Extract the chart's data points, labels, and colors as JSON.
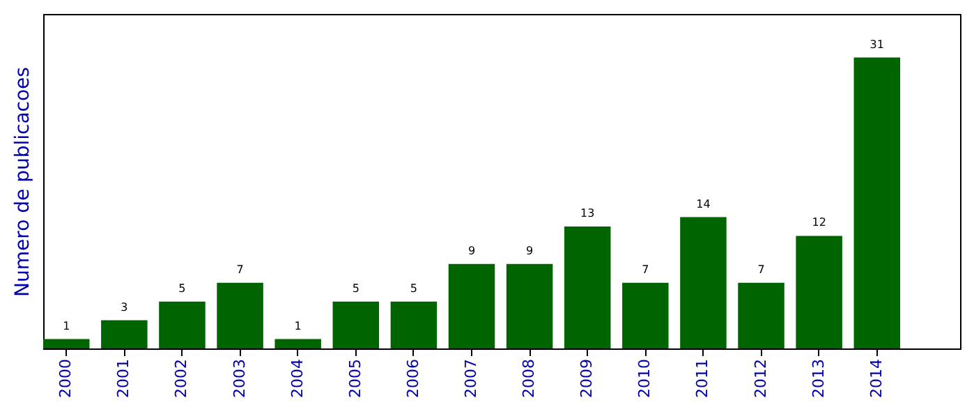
{
  "chart_data": {
    "type": "bar",
    "ylabel": "Numero de publicacoes",
    "categories": [
      "2000",
      "2001",
      "2002",
      "2003",
      "2004",
      "2005",
      "2006",
      "2007",
      "2008",
      "2009",
      "2010",
      "2011",
      "2012",
      "2013",
      "2014"
    ],
    "values": [
      1,
      3,
      5,
      7,
      1,
      5,
      5,
      9,
      9,
      13,
      7,
      14,
      7,
      12,
      31
    ],
    "color": "#006400",
    "data_labels": true,
    "tick_labels": "x",
    "grid": false
  }
}
